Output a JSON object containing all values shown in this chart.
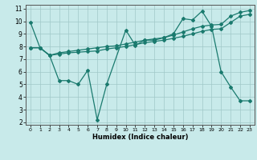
{
  "xlabel": "Humidex (Indice chaleur)",
  "bg_color": "#c8eaea",
  "line_color": "#1a7a6e",
  "grid_color": "#a0c8c8",
  "xlim": [
    -0.5,
    23.5
  ],
  "ylim": [
    1.8,
    11.3
  ],
  "xticks": [
    0,
    1,
    2,
    3,
    4,
    5,
    6,
    7,
    8,
    9,
    10,
    11,
    12,
    13,
    14,
    15,
    16,
    17,
    18,
    19,
    20,
    21,
    22,
    23
  ],
  "yticks": [
    2,
    3,
    4,
    5,
    6,
    7,
    8,
    9,
    10,
    11
  ],
  "line1_x": [
    0,
    1,
    2,
    3,
    4,
    5,
    6,
    7,
    8,
    10,
    11,
    12,
    13,
    14,
    15,
    16,
    17,
    18,
    19,
    20,
    21,
    22,
    23
  ],
  "line1_y": [
    9.9,
    7.9,
    7.3,
    5.3,
    5.3,
    5.0,
    6.1,
    2.2,
    5.0,
    9.3,
    8.1,
    8.5,
    8.5,
    8.7,
    9.0,
    10.2,
    10.1,
    10.8,
    9.6,
    6.0,
    4.8,
    3.7,
    3.7
  ],
  "line2_x": [
    0,
    1,
    2,
    3,
    4,
    5,
    6,
    7,
    8,
    9,
    10,
    11,
    12,
    13,
    14,
    15,
    16,
    17,
    18,
    19,
    20,
    21,
    22,
    23
  ],
  "line2_y": [
    7.9,
    7.9,
    7.3,
    7.5,
    7.6,
    7.7,
    7.8,
    7.9,
    8.0,
    8.05,
    8.2,
    8.35,
    8.5,
    8.6,
    8.7,
    8.9,
    9.15,
    9.4,
    9.6,
    9.7,
    9.75,
    10.4,
    10.7,
    10.85
  ],
  "line3_x": [
    0,
    1,
    2,
    3,
    4,
    5,
    6,
    7,
    8,
    9,
    10,
    11,
    12,
    13,
    14,
    15,
    16,
    17,
    18,
    19,
    20,
    21,
    22,
    23
  ],
  "line3_y": [
    7.9,
    7.9,
    7.3,
    7.4,
    7.5,
    7.55,
    7.6,
    7.65,
    7.8,
    7.9,
    8.0,
    8.15,
    8.3,
    8.4,
    8.5,
    8.65,
    8.8,
    9.0,
    9.2,
    9.35,
    9.4,
    9.9,
    10.4,
    10.55
  ]
}
